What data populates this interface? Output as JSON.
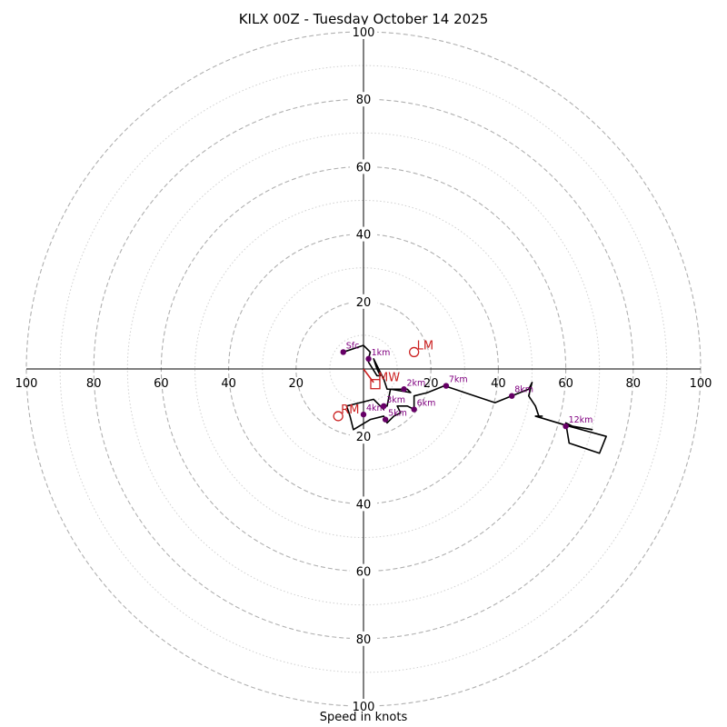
{
  "chart_data": {
    "type": "hodograph",
    "title": "KILX 00Z - Tuesday October 14 2025",
    "xlabel": "Speed in knots",
    "units": "knots",
    "axis_range": [
      -100,
      100
    ],
    "tick_labels": [
      "20",
      "40",
      "60",
      "80",
      "100"
    ],
    "ring_values_dashed": [
      20,
      40,
      60,
      80,
      100
    ],
    "ring_values_dotted": [
      10,
      30,
      50,
      70,
      90
    ],
    "hodograph_trace": [
      [
        -6,
        5
      ],
      [
        0,
        7
      ],
      [
        2,
        5
      ],
      [
        1.5,
        3
      ],
      [
        1.5,
        2
      ],
      [
        4,
        -2
      ],
      [
        5,
        -2
      ],
      [
        4,
        0
      ],
      [
        3,
        3
      ],
      [
        6,
        -3
      ],
      [
        7,
        -6
      ],
      [
        13,
        -6
      ],
      [
        14,
        -7
      ],
      [
        8,
        -6
      ],
      [
        7,
        -11
      ],
      [
        5,
        -11
      ],
      [
        6,
        -12
      ],
      [
        3,
        -9
      ],
      [
        -1,
        -10
      ],
      [
        -5,
        -11
      ],
      [
        -4,
        -14
      ],
      [
        -3,
        -18
      ],
      [
        2,
        -15
      ],
      [
        6,
        -14
      ],
      [
        7,
        -16
      ],
      [
        9,
        -14
      ],
      [
        11,
        -13
      ],
      [
        10,
        -11
      ],
      [
        13,
        -11
      ],
      [
        15,
        -12
      ],
      [
        15,
        -8
      ],
      [
        19,
        -7
      ],
      [
        24,
        -5
      ],
      [
        30,
        -7
      ],
      [
        39,
        -10
      ],
      [
        44,
        -8
      ],
      [
        49,
        -6
      ],
      [
        50,
        -4
      ],
      [
        49,
        -8
      ],
      [
        51,
        -11
      ],
      [
        52,
        -14
      ],
      [
        53,
        -14
      ],
      [
        51,
        -14
      ],
      [
        61,
        -17
      ],
      [
        72,
        -20
      ],
      [
        70,
        -25
      ],
      [
        61,
        -22
      ],
      [
        60,
        -16
      ],
      [
        62,
        -17
      ],
      [
        68,
        -18
      ]
    ],
    "height_markers": [
      {
        "label": "Sfc",
        "u": -6,
        "v": 5
      },
      {
        "label": "1km",
        "u": 1.5,
        "v": 3
      },
      {
        "label": "2km",
        "u": 12,
        "v": -6
      },
      {
        "label": "3km",
        "u": 6,
        "v": -11
      },
      {
        "label": "4km",
        "u": 0,
        "v": -13.5
      },
      {
        "label": "5km",
        "u": 6.5,
        "v": -15
      },
      {
        "label": "6km",
        "u": 15,
        "v": -12
      },
      {
        "label": "7km",
        "u": 24.5,
        "v": -5
      },
      {
        "label": "8km",
        "u": 44,
        "v": -8
      },
      {
        "label": "12km",
        "u": 60,
        "v": -17
      }
    ],
    "storm_motions": [
      {
        "label": "LM",
        "u": 15,
        "v": 5,
        "marker": "circle"
      },
      {
        "label": "RM",
        "u": -7.5,
        "v": -14,
        "marker": "circle"
      },
      {
        "label": "MW",
        "u": 3.5,
        "v": -4.5,
        "marker": "square"
      }
    ],
    "shear_vector": {
      "from": [
        0,
        0
      ],
      "to": [
        3,
        -4
      ]
    },
    "colors": {
      "trace": "#000000",
      "marker": "#660066",
      "marker_label": "#800080",
      "storm_motion": "#cc2222",
      "ring": "#b0b0b0"
    }
  }
}
